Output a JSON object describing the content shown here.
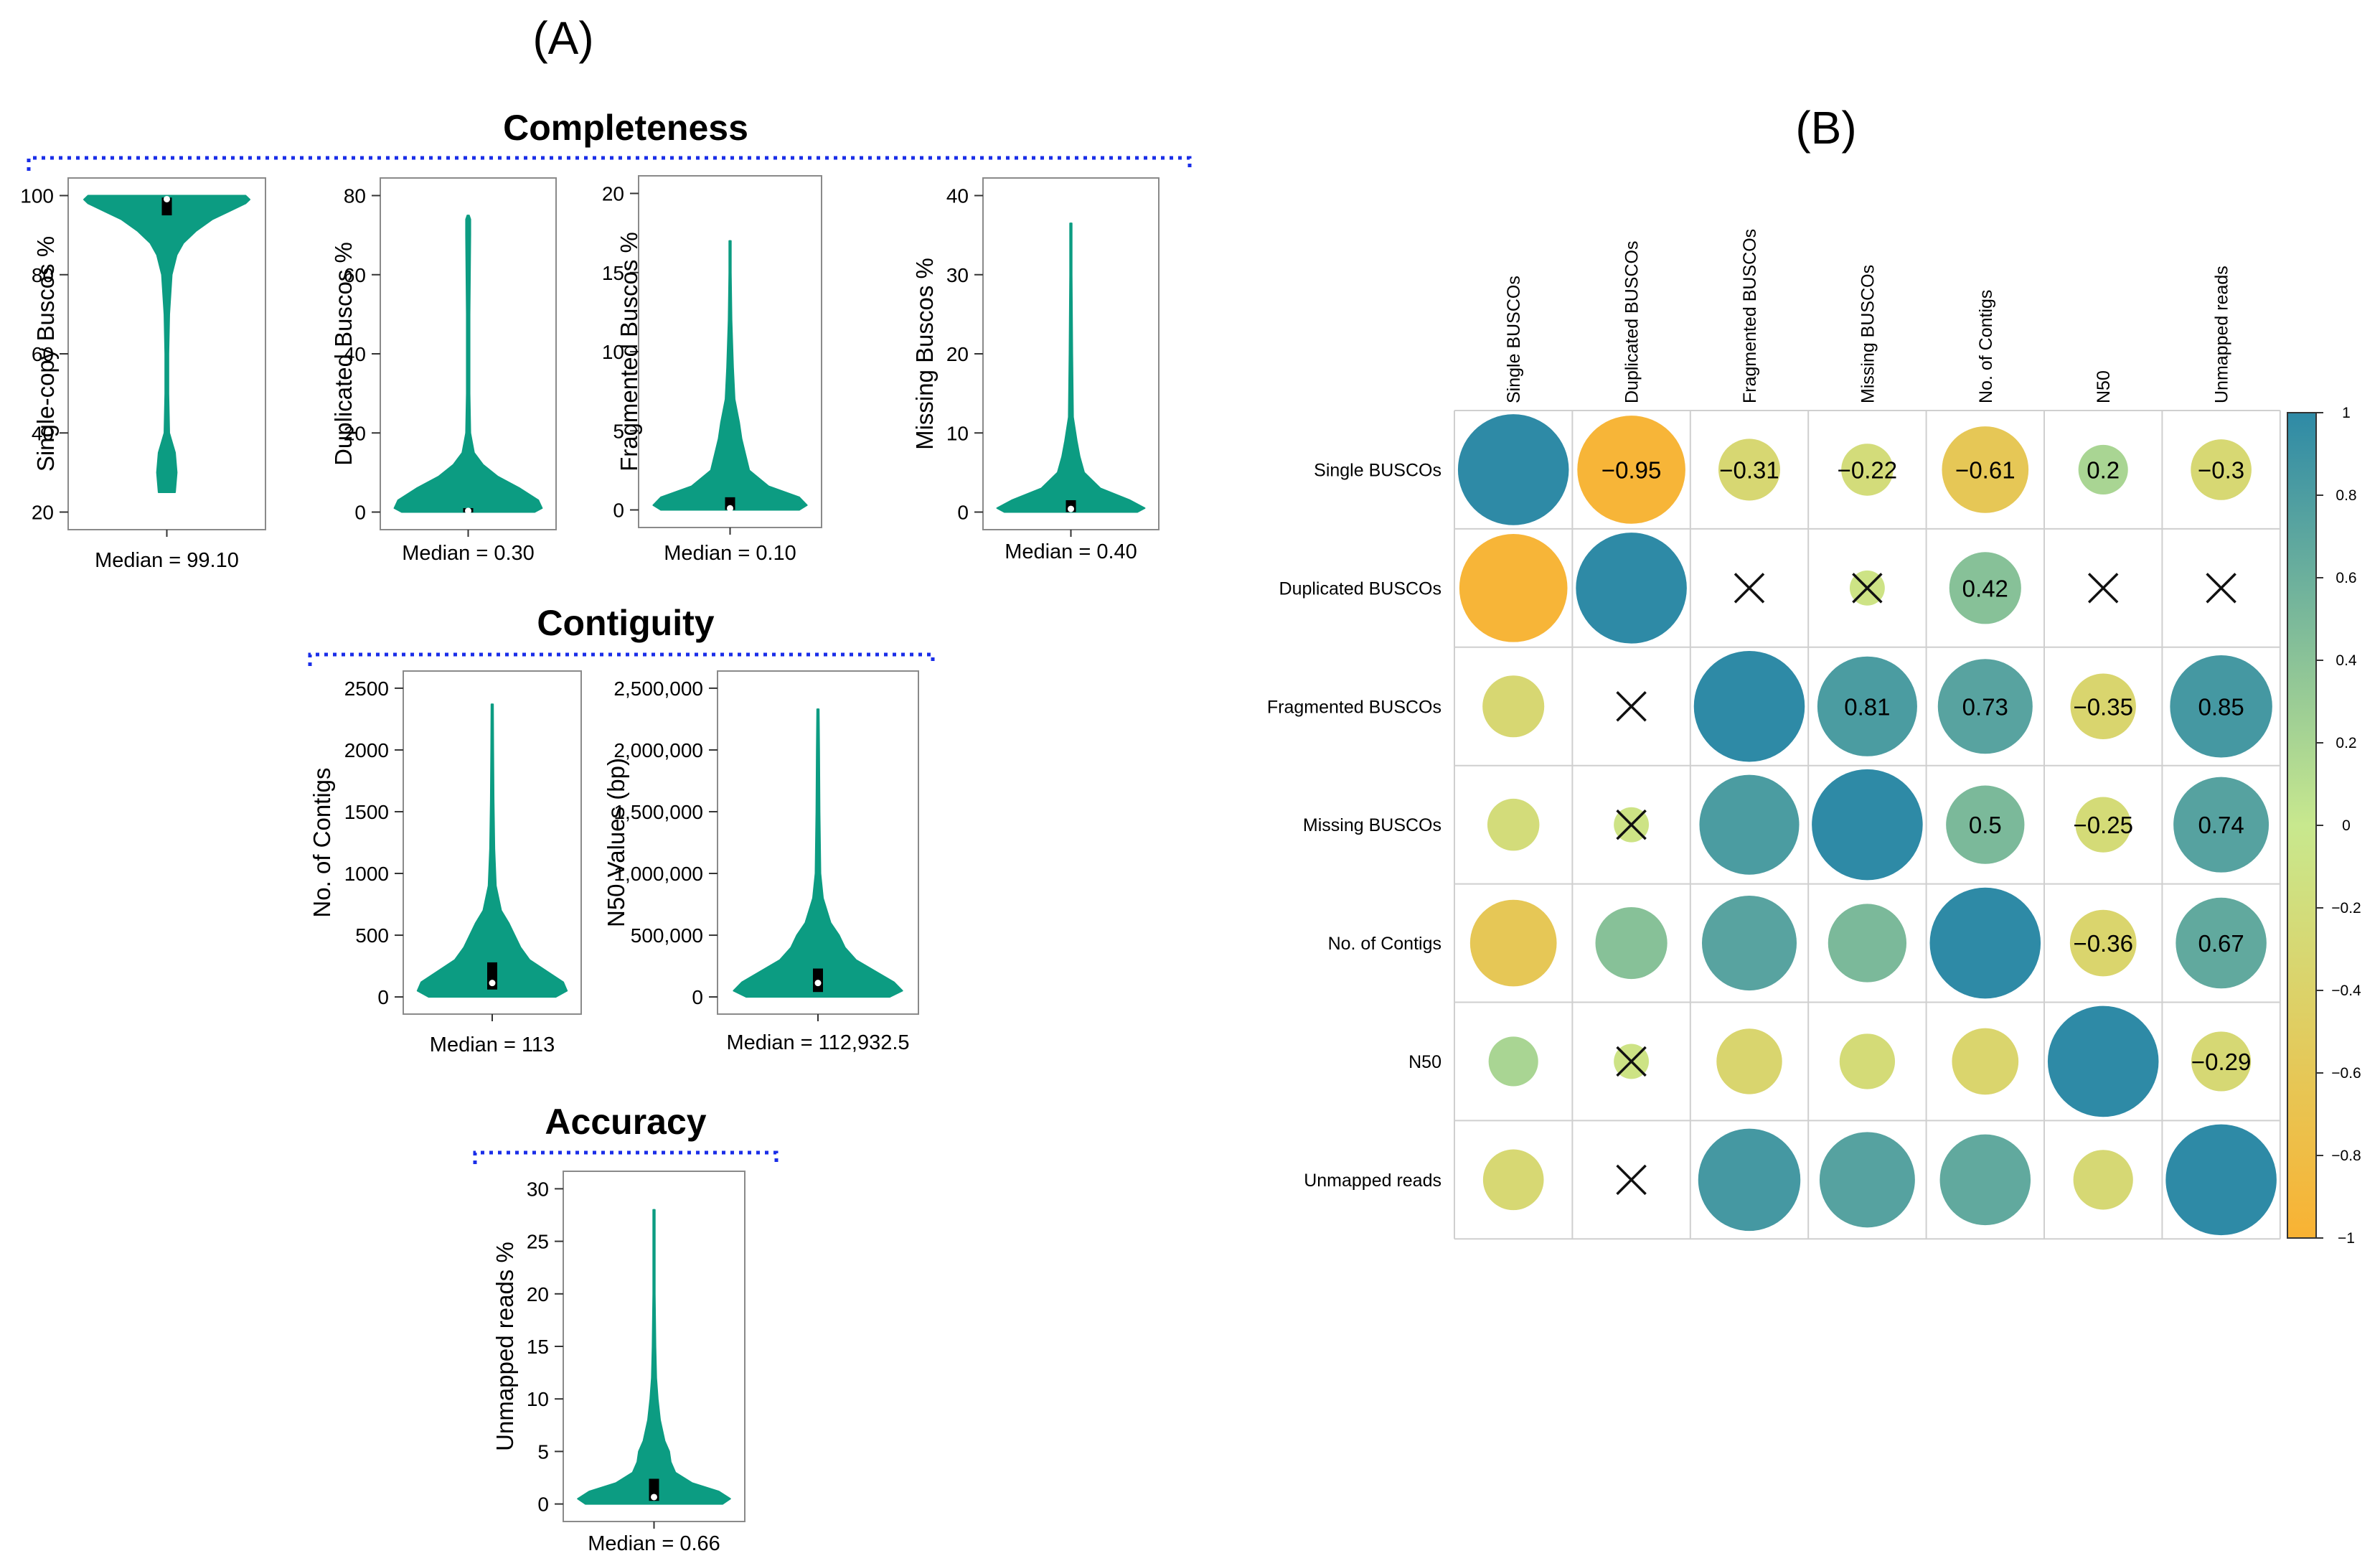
{
  "panel_a": {
    "label": "(A)",
    "sections": [
      {
        "title": "Completeness"
      },
      {
        "title": "Contiguity"
      },
      {
        "title": "Accuracy"
      }
    ]
  },
  "panel_b": {
    "label": "(B)"
  },
  "chart_data": [
    {
      "type": "violin",
      "section": "Completeness",
      "ylabel": "Single-copy Buscos %",
      "ylim": [
        20,
        100
      ],
      "ticks": [
        20,
        40,
        60,
        80,
        100
      ],
      "tick_labels": [
        "20",
        "40",
        "60",
        "80",
        "100"
      ],
      "median": 99.1,
      "caption": "Median = 99.10",
      "shape": {
        "y": [
          25,
          30,
          35,
          40,
          50,
          60,
          70,
          80,
          85,
          88,
          91,
          94,
          96,
          98,
          99,
          100
        ],
        "w": [
          0.1,
          0.12,
          0.1,
          0.03,
          0.02,
          0.02,
          0.03,
          0.06,
          0.12,
          0.2,
          0.35,
          0.55,
          0.75,
          0.95,
          1.0,
          0.95
        ]
      },
      "box": [
        95,
        99.5
      ]
    },
    {
      "type": "violin",
      "section": "Completeness",
      "ylabel": "Duplicated Buscos %",
      "ylim": [
        0,
        80
      ],
      "ticks": [
        0,
        20,
        40,
        60,
        80
      ],
      "tick_labels": [
        "0",
        "20",
        "40",
        "60",
        "80"
      ],
      "median": 0.3,
      "caption": "Median = 0.30",
      "shape": {
        "y": [
          0,
          1,
          3,
          6,
          9,
          12,
          15,
          20,
          30,
          50,
          70,
          74,
          75
        ],
        "w": [
          0.9,
          1.0,
          0.95,
          0.7,
          0.4,
          0.2,
          0.08,
          0.03,
          0.02,
          0.02,
          0.03,
          0.03,
          0.0
        ]
      },
      "box": [
        0,
        1
      ]
    },
    {
      "type": "violin",
      "section": "Completeness",
      "ylabel": "Fragmented Buscos %",
      "ylim": [
        0,
        20
      ],
      "ticks": [
        0,
        5,
        10,
        15,
        20
      ],
      "tick_labels": [
        "0",
        "5",
        "10",
        "15",
        "20"
      ],
      "median": 0.1,
      "caption": "Median = 0.10",
      "shape": {
        "y": [
          0,
          0.3,
          0.8,
          1.5,
          2.5,
          3.5,
          4.5,
          5.5,
          7,
          9,
          12,
          15,
          17
        ],
        "w": [
          0.9,
          1.0,
          0.9,
          0.5,
          0.25,
          0.2,
          0.15,
          0.12,
          0.06,
          0.04,
          0.02,
          0.01,
          0.0
        ]
      },
      "box": [
        0,
        0.8
      ]
    },
    {
      "type": "violin",
      "section": "Completeness",
      "ylabel": "Missing Buscos %",
      "ylim": [
        0,
        40
      ],
      "ticks": [
        0,
        10,
        20,
        30,
        40
      ],
      "tick_labels": [
        "0",
        "10",
        "20",
        "30",
        "40"
      ],
      "median": 0.4,
      "caption": "Median = 0.40",
      "shape": {
        "y": [
          0,
          0.5,
          1.5,
          3,
          5,
          7,
          9,
          12,
          20,
          30,
          36.5
        ],
        "w": [
          0.9,
          1.0,
          0.8,
          0.4,
          0.18,
          0.12,
          0.08,
          0.03,
          0.02,
          0.01,
          0.0
        ]
      },
      "box": [
        0,
        1.5
      ]
    },
    {
      "type": "violin",
      "section": "Contiguity",
      "ylabel": "No. of Contigs",
      "ylim": [
        0,
        2500
      ],
      "ticks": [
        0,
        500,
        1000,
        1500,
        2000,
        2500
      ],
      "tick_labels": [
        "0",
        "500",
        "1000",
        "1500",
        "2000",
        "2500"
      ],
      "median": 113,
      "caption": "Median = 113",
      "shape": {
        "y": [
          0,
          50,
          120,
          200,
          300,
          400,
          500,
          600,
          700,
          900,
          1200,
          1600,
          2000,
          2370
        ],
        "w": [
          0.85,
          1.0,
          0.95,
          0.75,
          0.5,
          0.38,
          0.3,
          0.22,
          0.12,
          0.05,
          0.03,
          0.02,
          0.015,
          0.0
        ]
      },
      "box": [
        60,
        280
      ]
    },
    {
      "type": "violin",
      "section": "Contiguity",
      "ylabel": "N50 Values (bp)",
      "ylim": [
        0,
        2500000
      ],
      "ticks": [
        0,
        500000,
        1000000,
        1500000,
        2000000,
        2500000
      ],
      "tick_labels": [
        "0",
        "500,000",
        "1,000,000",
        "1,500,000",
        "2,000,000",
        "2,500,000"
      ],
      "median": 112932.5,
      "caption": "Median = 112,932.5",
      "shape": {
        "y": [
          0,
          50000,
          120000,
          200000,
          300000,
          400000,
          500000,
          600000,
          800000,
          1000000,
          1500000,
          2000000,
          2330000
        ],
        "w": [
          0.85,
          1.0,
          0.9,
          0.7,
          0.45,
          0.32,
          0.25,
          0.15,
          0.06,
          0.03,
          0.02,
          0.015,
          0.0
        ]
      },
      "box": [
        40000,
        230000
      ]
    },
    {
      "type": "violin",
      "section": "Accuracy",
      "ylabel": "Unmapped reads %",
      "ylim": [
        0,
        30
      ],
      "ticks": [
        0,
        5,
        10,
        15,
        20,
        25,
        30
      ],
      "tick_labels": [
        "0",
        "5",
        "10",
        "15",
        "20",
        "25",
        "30"
      ],
      "median": 0.66,
      "caption": "Median = 0.66",
      "shape": {
        "y": [
          0,
          0.5,
          1.2,
          2,
          3,
          4,
          5,
          6,
          8,
          10,
          12,
          15,
          20,
          28
        ],
        "w": [
          0.9,
          1.0,
          0.85,
          0.5,
          0.28,
          0.22,
          0.2,
          0.14,
          0.08,
          0.05,
          0.03,
          0.02,
          0.01,
          0.0
        ]
      },
      "box": [
        0.3,
        2.4
      ]
    },
    {
      "type": "heatmap",
      "variables": [
        "Single BUSCOs",
        "Duplicated BUSCOs",
        "Fragmented BUSCOs",
        "Missing BUSCOs",
        "No. of Contigs",
        "N50",
        "Unmapped reads"
      ],
      "row_labels": [
        "Single BUSCOs",
        "Duplicated BUSCOs",
        "Fragmented BUSCOs",
        "Missing BUSCOs",
        "No. of Contigs",
        "N50",
        "Unmapped reads"
      ],
      "matrix": [
        [
          1,
          -0.95,
          -0.31,
          -0.22,
          -0.61,
          0.2,
          -0.3
        ],
        [
          -0.95,
          1,
          null,
          -0.1,
          0.42,
          null,
          null
        ],
        [
          -0.31,
          null,
          1,
          0.81,
          0.73,
          -0.35,
          0.85
        ],
        [
          -0.22,
          -0.1,
          0.81,
          1,
          0.5,
          -0.25,
          0.74
        ],
        [
          -0.61,
          0.42,
          0.73,
          0.5,
          1,
          -0.36,
          0.67
        ],
        [
          0.2,
          -0.1,
          -0.35,
          -0.25,
          -0.36,
          1,
          -0.29
        ],
        [
          -0.3,
          null,
          0.85,
          0.74,
          0.67,
          -0.29,
          1
        ]
      ],
      "labels_shown": [
        [
          null,
          "−0.95",
          "−0.31",
          "−0.22",
          "−0.61",
          "0.2",
          "−0.3"
        ],
        [
          null,
          null,
          null,
          null,
          "0.42",
          null,
          null
        ],
        [
          null,
          null,
          null,
          "0.81",
          "0.73",
          "−0.35",
          "0.85"
        ],
        [
          null,
          null,
          null,
          null,
          "0.5",
          "−0.25",
          "0.74"
        ],
        [
          null,
          null,
          null,
          null,
          null,
          "−0.36",
          "0.67"
        ],
        [
          null,
          null,
          null,
          null,
          null,
          null,
          "−0.29"
        ],
        [
          null,
          null,
          null,
          null,
          null,
          null,
          null
        ]
      ],
      "crossed": [
        [
          false,
          false,
          false,
          false,
          false,
          false,
          false
        ],
        [
          false,
          false,
          true,
          true,
          false,
          true,
          true
        ],
        [
          false,
          true,
          false,
          false,
          false,
          false,
          false
        ],
        [
          false,
          true,
          false,
          false,
          false,
          false,
          false
        ],
        [
          false,
          false,
          false,
          false,
          false,
          false,
          false
        ],
        [
          false,
          true,
          false,
          false,
          false,
          false,
          false
        ],
        [
          false,
          true,
          false,
          false,
          false,
          false,
          false
        ]
      ],
      "colorbar": {
        "range": [
          -1,
          1
        ],
        "ticks": [
          1,
          0.8,
          0.6,
          0.4,
          0.2,
          0,
          -0.2,
          -0.4,
          -0.6,
          -0.8,
          -1
        ],
        "tick_labels": [
          "1",
          "0.8",
          "0.6",
          "0.4",
          "0.2",
          "0",
          "−0.2",
          "−0.4",
          "−0.6",
          "−0.8",
          "−1"
        ],
        "colors": [
          "#F9B233",
          "#C8E88E",
          "#2E8AA6"
        ]
      }
    }
  ]
}
